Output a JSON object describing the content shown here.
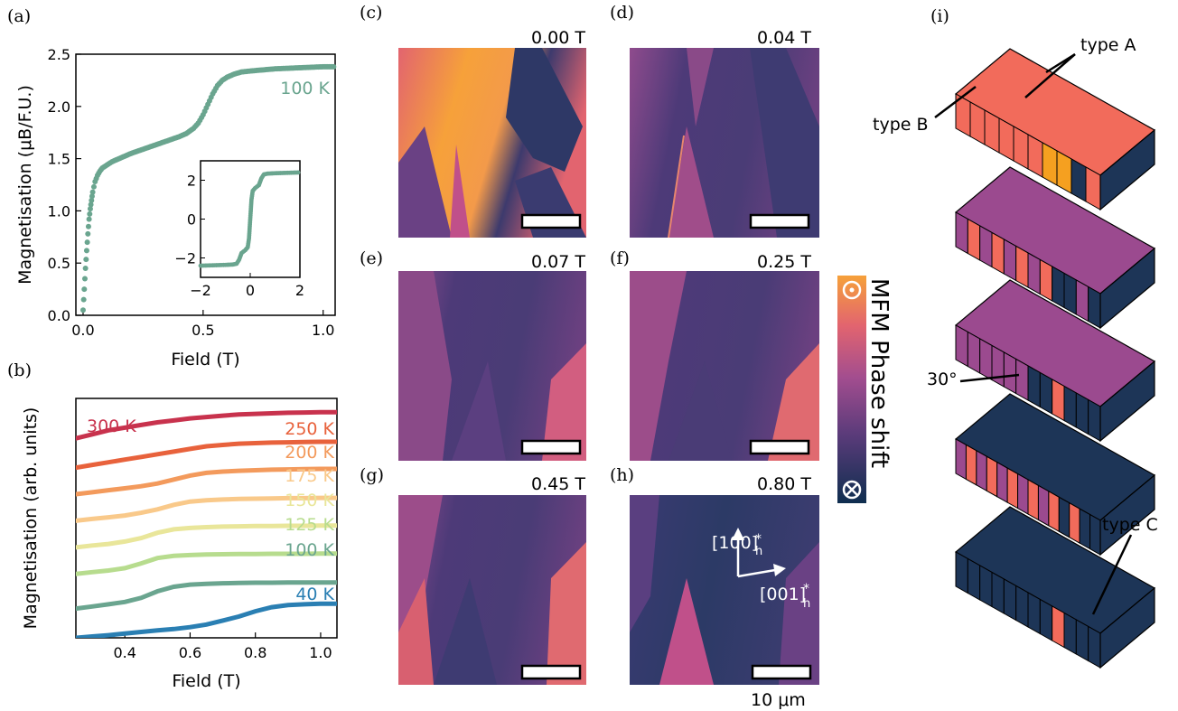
{
  "panels": {
    "a": "(a)",
    "b": "(b)",
    "c": "(c)",
    "d": "(d)",
    "e": "(e)",
    "f": "(f)",
    "g": "(g)",
    "h": "(h)",
    "i": "(i)"
  },
  "chart_data": [
    {
      "id": "a",
      "type": "scatter",
      "xlabel": "Field (T)",
      "ylabel": "Magnetisation (μB/F.U.)",
      "xlim": [
        -0.03,
        1.05
      ],
      "ylim": [
        0.0,
        2.5
      ],
      "xticks": [
        "0.0",
        "0.5",
        "1.0"
      ],
      "yticks": [
        "0.0",
        "0.5",
        "1.0",
        "1.5",
        "2.0",
        "2.5"
      ],
      "color": "#6aa58f",
      "series": [
        {
          "name": "100 K",
          "x": [
            0.0,
            0.005,
            0.01,
            0.015,
            0.02,
            0.025,
            0.03,
            0.035,
            0.04,
            0.05,
            0.06,
            0.07,
            0.08,
            0.1,
            0.12,
            0.15,
            0.2,
            0.25,
            0.3,
            0.35,
            0.4,
            0.43,
            0.46,
            0.48,
            0.5,
            0.52,
            0.54,
            0.56,
            0.58,
            0.6,
            0.63,
            0.66,
            0.7,
            0.75,
            0.8,
            0.9,
            1.0,
            1.05
          ],
          "y": [
            0.05,
            0.25,
            0.45,
            0.62,
            0.78,
            0.92,
            1.02,
            1.1,
            1.18,
            1.28,
            1.34,
            1.38,
            1.41,
            1.44,
            1.47,
            1.5,
            1.55,
            1.59,
            1.63,
            1.67,
            1.71,
            1.74,
            1.79,
            1.84,
            1.92,
            2.02,
            2.12,
            2.2,
            2.25,
            2.28,
            2.31,
            2.33,
            2.34,
            2.35,
            2.36,
            2.37,
            2.38,
            2.38
          ]
        }
      ],
      "inset": {
        "xlim": [
          -2,
          2
        ],
        "ylim": [
          -3,
          3
        ],
        "xticks": [
          "−2",
          "0",
          "2"
        ],
        "yticks": [
          "−2",
          "0",
          "2"
        ],
        "x": [
          -2.0,
          -1.5,
          -1.0,
          -0.7,
          -0.55,
          -0.45,
          -0.35,
          -0.2,
          -0.1,
          -0.05,
          0.0,
          0.05,
          0.1,
          0.2,
          0.35,
          0.45,
          0.55,
          0.7,
          1.0,
          1.5,
          2.0
        ],
        "y": [
          -2.4,
          -2.38,
          -2.36,
          -2.34,
          -2.3,
          -2.1,
          -1.75,
          -1.6,
          -1.45,
          -1.0,
          0.0,
          1.0,
          1.45,
          1.6,
          1.75,
          2.1,
          2.3,
          2.34,
          2.36,
          2.38,
          2.4
        ]
      }
    },
    {
      "id": "b",
      "type": "line",
      "xlabel": "Field (T)",
      "ylabel": "Magnetisation (arb. units)",
      "xlim": [
        0.25,
        1.05
      ],
      "xticks": [
        "0.4",
        "0.6",
        "0.8",
        "1.0"
      ],
      "x": [
        0.25,
        0.3,
        0.35,
        0.4,
        0.45,
        0.5,
        0.55,
        0.6,
        0.65,
        0.7,
        0.75,
        0.8,
        0.85,
        0.9,
        0.95,
        1.0,
        1.05
      ],
      "series": [
        {
          "name": "300 K",
          "color": "#c8324d",
          "values": [
            8.3,
            8.45,
            8.6,
            8.7,
            8.8,
            8.9,
            8.97,
            9.05,
            9.1,
            9.15,
            9.2,
            9.22,
            9.24,
            9.26,
            9.27,
            9.28,
            9.28
          ]
        },
        {
          "name": "250 K",
          "color": "#e8623c",
          "values": [
            7.2,
            7.3,
            7.4,
            7.5,
            7.6,
            7.7,
            7.8,
            7.9,
            8.0,
            8.05,
            8.1,
            8.12,
            8.14,
            8.15,
            8.16,
            8.17,
            8.17
          ]
        },
        {
          "name": "200 K",
          "color": "#f39a5c",
          "values": [
            6.2,
            6.27,
            6.35,
            6.42,
            6.5,
            6.6,
            6.75,
            6.9,
            7.0,
            7.05,
            7.08,
            7.1,
            7.12,
            7.13,
            7.14,
            7.15,
            7.15
          ]
        },
        {
          "name": "175 K",
          "color": "#f9c98a",
          "values": [
            5.2,
            5.27,
            5.33,
            5.4,
            5.5,
            5.63,
            5.8,
            5.92,
            5.97,
            6.0,
            6.02,
            6.03,
            6.04,
            6.05,
            6.05,
            6.06,
            6.06
          ]
        },
        {
          "name": "150 K",
          "color": "#e9e69a",
          "values": [
            4.2,
            4.27,
            4.33,
            4.42,
            4.55,
            4.75,
            4.88,
            4.93,
            4.96,
            4.98,
            4.99,
            5.0,
            5.0,
            5.01,
            5.01,
            5.02,
            5.02
          ]
        },
        {
          "name": "125 K",
          "color": "#b7dc8e",
          "values": [
            3.2,
            3.27,
            3.33,
            3.42,
            3.6,
            3.8,
            3.88,
            3.91,
            3.93,
            3.94,
            3.95,
            3.95,
            3.96,
            3.96,
            3.96,
            3.97,
            3.97
          ]
        },
        {
          "name": "100 K",
          "color": "#6aa58f",
          "values": [
            1.9,
            1.98,
            2.06,
            2.15,
            2.3,
            2.55,
            2.72,
            2.8,
            2.83,
            2.85,
            2.86,
            2.87,
            2.87,
            2.88,
            2.88,
            2.88,
            2.88
          ]
        },
        {
          "name": "40 K",
          "color": "#2a7fb3",
          "values": [
            0.8,
            0.85,
            0.9,
            0.96,
            1.02,
            1.08,
            1.13,
            1.2,
            1.3,
            1.45,
            1.6,
            1.8,
            1.95,
            2.03,
            2.06,
            2.08,
            2.08
          ]
        }
      ],
      "ylim": [
        0.8,
        9.8
      ]
    }
  ],
  "mfm": {
    "fields": [
      "0.00 T",
      "0.04 T",
      "0.07 T",
      "0.25 T",
      "0.45 T",
      "0.80 T"
    ],
    "scale_label": "10 μm",
    "axis_a": "[100]",
    "axis_b": "[001]",
    "axis_sub": "h",
    "axis_sup": "*",
    "colorbar_label": "MFM Phase shift",
    "cbar_top_symbol": "⊙",
    "cbar_bottom_symbol": "⊗",
    "colors": [
      "#0f2e4f",
      "#5a3b7a",
      "#a24d8f",
      "#e2646f",
      "#f6a13a"
    ]
  },
  "schematic": {
    "type_a": "type A",
    "type_b": "type B",
    "type_c": "type C",
    "angle": "30°",
    "colors": {
      "navy": "#1d3557",
      "purple": "#9b4a8f",
      "coral": "#f26b5b",
      "orange": "#f5a020"
    }
  }
}
